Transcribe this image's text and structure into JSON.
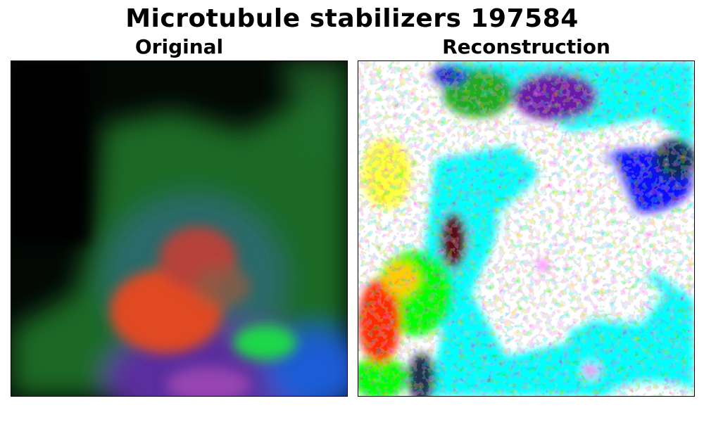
{
  "figure": {
    "title": "Microtubule stabilizers 197584",
    "panels": [
      {
        "label": "Original",
        "image": "fluorescence-cell-image"
      },
      {
        "label": "Reconstruction",
        "image": "reconstructed-cell-image"
      }
    ]
  },
  "colors": {
    "background": "#ffffff",
    "text": "#000000",
    "cyan": "#00ffff",
    "green": "#00ff00",
    "blue": "#0000ff",
    "red": "#ff0000"
  }
}
